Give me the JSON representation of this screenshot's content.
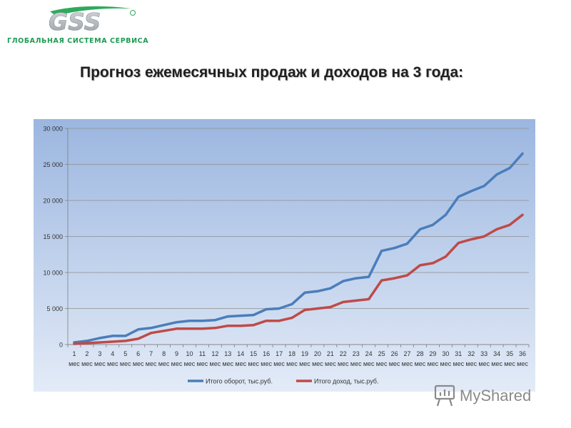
{
  "header": {
    "logo_text": "GSS",
    "logo_subtitle": "ГЛОБАЛЬНАЯ СИСТЕМА СЕРВИСА"
  },
  "page_title": "Прогноз ежемесячных продаж и доходов на 3 года:",
  "colors": {
    "brand_green": "#1d9b52",
    "logo_gray": "#b6bcc2",
    "series_turnover": "#4a7ebb",
    "series_income": "#be4b48"
  },
  "watermark": {
    "text": "MyShared"
  },
  "chart_data": {
    "type": "line",
    "x": [
      1,
      2,
      3,
      4,
      5,
      6,
      7,
      8,
      9,
      10,
      11,
      12,
      13,
      14,
      15,
      16,
      17,
      18,
      19,
      20,
      21,
      22,
      23,
      24,
      25,
      26,
      27,
      28,
      29,
      30,
      31,
      32,
      33,
      34,
      35,
      36
    ],
    "x_tick_labels": [
      "1",
      "2",
      "3",
      "4",
      "5",
      "6",
      "7",
      "8",
      "9",
      "10",
      "11",
      "12",
      "13",
      "14",
      "15",
      "16",
      "17",
      "18",
      "19",
      "20",
      "21",
      "22",
      "23",
      "24",
      "25",
      "26",
      "27",
      "28",
      "29",
      "30",
      "31",
      "32",
      "33",
      "34",
      "35",
      "36"
    ],
    "x_unit_label": "мес",
    "y_tick_labels": [
      "0",
      "5 000",
      "10 000",
      "15 000",
      "20 000",
      "25 000",
      "30 000"
    ],
    "ylim": [
      0,
      30000
    ],
    "grid": true,
    "legend_position": "bottom",
    "series": [
      {
        "name": "Итого оборот, тыс.руб.",
        "color": "#4a7ebb",
        "values": [
          300,
          500,
          900,
          1200,
          1200,
          2100,
          2300,
          2700,
          3100,
          3300,
          3300,
          3400,
          3900,
          4000,
          4100,
          4900,
          5000,
          5600,
          7200,
          7400,
          7800,
          8800,
          9200,
          9400,
          13000,
          13400,
          14000,
          16000,
          16600,
          18000,
          20500,
          21300,
          22000,
          23600,
          24500,
          26500
        ]
      },
      {
        "name": "Итого доход, тыс.руб.",
        "color": "#be4b48",
        "values": [
          100,
          200,
          300,
          400,
          500,
          800,
          1600,
          1900,
          2200,
          2200,
          2200,
          2300,
          2600,
          2600,
          2700,
          3300,
          3300,
          3700,
          4800,
          5000,
          5200,
          5900,
          6100,
          6300,
          8900,
          9200,
          9600,
          11000,
          11300,
          12200,
          14100,
          14600,
          15000,
          16000,
          16600,
          18000
        ]
      }
    ]
  }
}
